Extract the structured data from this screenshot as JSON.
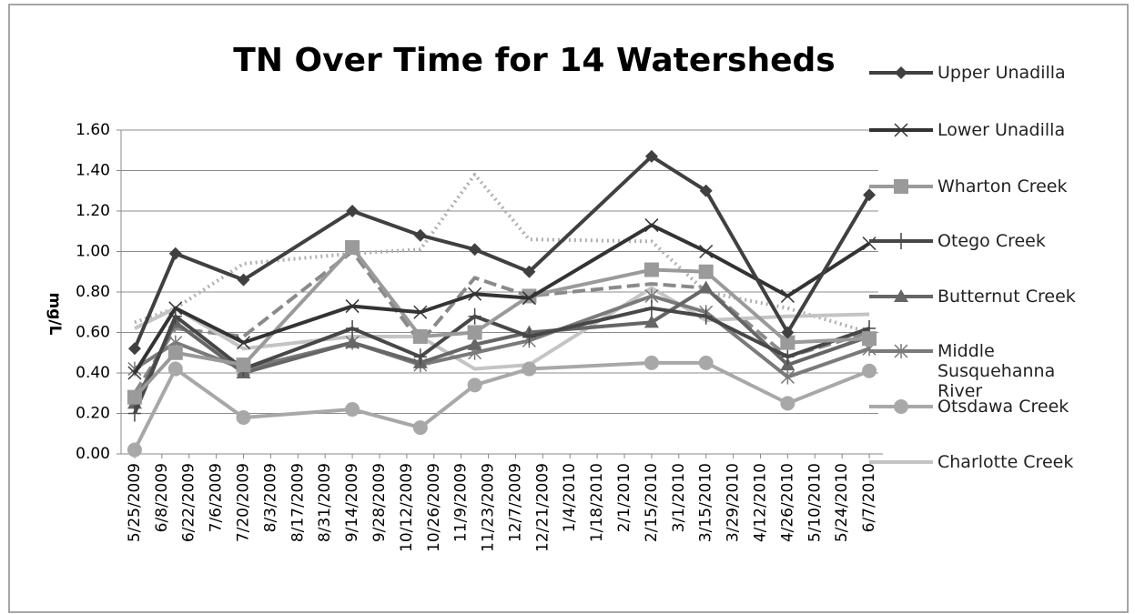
{
  "chart_data": {
    "type": "line",
    "title": "TN Over Time for 14 Watersheds",
    "y_label": "mg/L",
    "categories": [
      "5/25/2009",
      "6/8/2009",
      "6/22/2009",
      "7/6/2009",
      "7/20/2009",
      "8/3/2009",
      "8/17/2009",
      "8/31/2009",
      "9/14/2009",
      "9/28/2009",
      "10/12/2009",
      "10/26/2009",
      "11/9/2009",
      "11/23/2009",
      "12/7/2009",
      "12/21/2009",
      "1/4/2010",
      "1/18/2010",
      "2/1/2010",
      "2/15/2010",
      "3/1/2010",
      "3/15/2010",
      "3/29/2010",
      "4/12/2010",
      "4/26/2010",
      "5/10/2010",
      "5/24/2010",
      "6/7/2010"
    ],
    "x": [
      "5/25/2009",
      "6/15/2009",
      "7/20/2009",
      "9/14/2009",
      "10/19/2009",
      "11/16/2009",
      "12/14/2009",
      "2/15/2010",
      "3/15/2010",
      "4/26/2010",
      "6/7/2010"
    ],
    "xlim": [
      "5/18/2009",
      "6/14/2010"
    ],
    "ylim": [
      0,
      1.6
    ],
    "yticks": [
      {
        "value": 0,
        "label": "0.00"
      },
      {
        "value": 0.2,
        "label": "0.20"
      },
      {
        "value": 0.4,
        "label": "0.40"
      },
      {
        "value": 0.6,
        "label": "0.60"
      },
      {
        "value": 0.8,
        "label": "0.80"
      },
      {
        "value": 1,
        "label": "1.00"
      },
      {
        "value": 1.2,
        "label": "1.20"
      },
      {
        "value": 1.4,
        "label": "1.40"
      },
      {
        "value": 1.6,
        "label": "1.60"
      }
    ],
    "grid": true,
    "legend": "right",
    "series": [
      {
        "color": "#b0b0b0",
        "dash": "2,4",
        "values": [
          0.65,
          0.72,
          0.94,
          0.99,
          1.01,
          1.38,
          1.06,
          1.05,
          0.8,
          0.72,
          0.6
        ]
      },
      {
        "color": "#8a8a8a",
        "dash": "14,6",
        "values": [
          0.3,
          0.62,
          0.58,
          1.0,
          0.55,
          0.87,
          0.78,
          0.84,
          0.82,
          0.48,
          0.6
        ]
      },
      {
        "name": "Charlotte Creek",
        "color": "#c4c4c4",
        "marker": "none",
        "values": [
          0.62,
          0.72,
          0.52,
          0.58,
          0.58,
          0.42,
          0.44,
          0.82,
          0.66,
          0.68,
          0.69
        ]
      },
      {
        "name": "Otsdawa Creek",
        "color": "#a8a8a8",
        "marker": "circle",
        "values": [
          0.02,
          0.42,
          0.18,
          0.22,
          0.13,
          0.34,
          0.42,
          0.45,
          0.45,
          0.25,
          0.41
        ]
      },
      {
        "name": "Middle Susquehanna River",
        "color": "#7a7a7a",
        "marker": "star",
        "values": [
          0.42,
          0.55,
          0.42,
          0.55,
          0.44,
          0.5,
          0.56,
          0.78,
          0.7,
          0.38,
          0.52
        ]
      },
      {
        "name": "Butternut Creek",
        "color": "#666666",
        "marker": "triangle",
        "values": [
          0.25,
          0.65,
          0.4,
          0.55,
          0.45,
          0.54,
          0.6,
          0.65,
          0.82,
          0.44,
          0.58
        ]
      },
      {
        "name": "Otego Creek",
        "color": "#474747",
        "marker": "plus",
        "values": [
          0.2,
          0.68,
          0.42,
          0.62,
          0.48,
          0.68,
          0.58,
          0.72,
          0.68,
          0.48,
          0.62
        ]
      },
      {
        "name": "Wharton Creek",
        "color": "#9a9a9a",
        "marker": "square",
        "values": [
          0.28,
          0.5,
          0.44,
          1.02,
          0.58,
          0.6,
          0.78,
          0.91,
          0.9,
          0.55,
          0.57
        ]
      },
      {
        "name": "Lower Unadilla",
        "color": "#333333",
        "marker": "x",
        "values": [
          0.4,
          0.72,
          0.55,
          0.73,
          0.7,
          0.79,
          0.77,
          1.13,
          1.0,
          0.78,
          1.04
        ]
      },
      {
        "name": "Upper Unadilla",
        "color": "#404040",
        "marker": "diamond",
        "values": [
          0.52,
          0.99,
          0.86,
          1.2,
          1.08,
          1.01,
          0.9,
          1.47,
          1.3,
          0.6,
          1.28
        ]
      }
    ]
  }
}
